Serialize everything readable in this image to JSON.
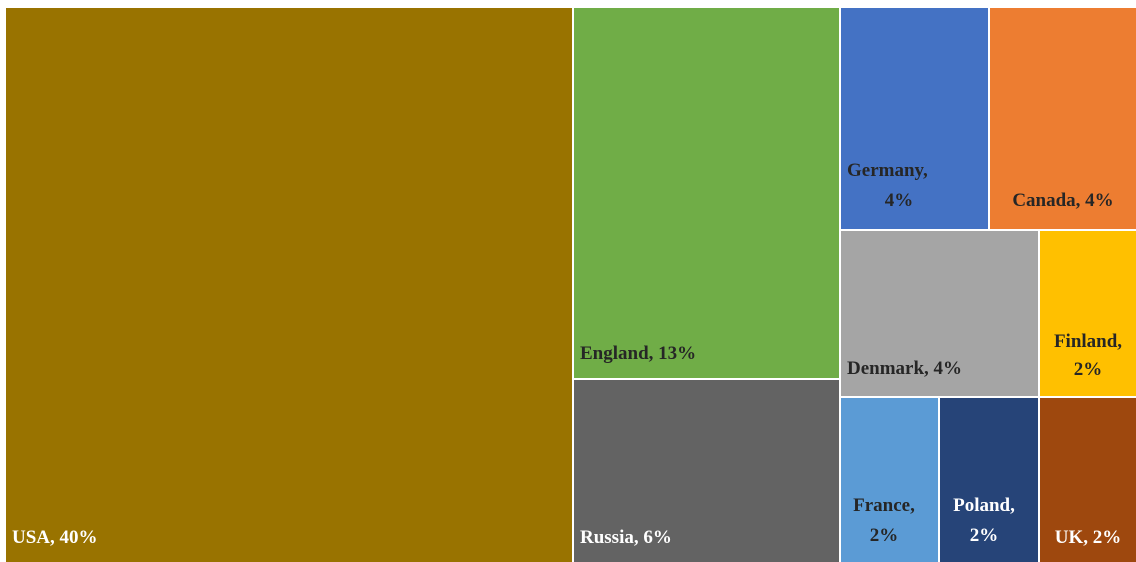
{
  "chart_data": {
    "type": "treemap",
    "title": "",
    "items": [
      {
        "name": "USA",
        "value": 40,
        "label": "USA, 40%",
        "color": "#997300",
        "text_color": "#ffffff"
      },
      {
        "name": "England",
        "value": 13,
        "label": "England, 13%",
        "color": "#70ad47",
        "text_color": "#262626"
      },
      {
        "name": "Russia",
        "value": 6,
        "label": "Russia, 6%",
        "color": "#636363",
        "text_color": "#ffffff"
      },
      {
        "name": "Germany",
        "value": 4,
        "label": "Germany, 4%",
        "color": "#4472c4",
        "text_color": "#262626"
      },
      {
        "name": "Canada",
        "value": 4,
        "label": "Canada, 4%",
        "color": "#ed7d31",
        "text_color": "#262626"
      },
      {
        "name": "Denmark",
        "value": 4,
        "label": "Denmark, 4%",
        "color": "#a5a5a5",
        "text_color": "#262626"
      },
      {
        "name": "Finland",
        "value": 2,
        "label": "Finland, 2%",
        "color": "#ffc000",
        "text_color": "#262626"
      },
      {
        "name": "France",
        "value": 2,
        "label": "France, 2%",
        "color": "#5b9bd5",
        "text_color": "#262626"
      },
      {
        "name": "Poland",
        "value": 2,
        "label": "Poland, 2%",
        "color": "#264478",
        "text_color": "#ffffff"
      },
      {
        "name": "UK",
        "value": 2,
        "label": "UK, 2%",
        "color": "#9e480e",
        "text_color": "#ffffff"
      }
    ]
  }
}
